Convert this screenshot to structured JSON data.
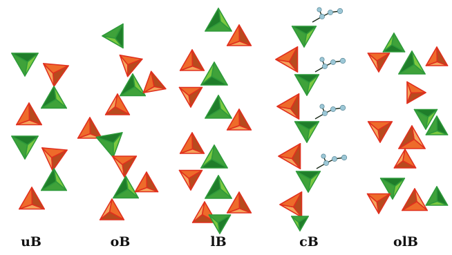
{
  "labels": {
    "uB": "uB",
    "oB": "oB",
    "lB": "lB",
    "cB": "cB",
    "olB": "olB"
  },
  "colors": {
    "green_light": "#7cc940",
    "green_mid": "#3fa23a",
    "green_dark": "#1f7d2a",
    "green_edge": "#2e9a3a",
    "orange_light": "#f6a35c",
    "orange_mid": "#ee6b2a",
    "orange_dark": "#b84a1e",
    "orange_edge": "#e0301e",
    "atom": "#9cc7d6"
  },
  "panels": [
    {
      "id": "uB",
      "name": "uB",
      "tetrahedra": [
        "green",
        "orange",
        "green",
        "orange",
        "green",
        "orange",
        "green",
        "orange"
      ]
    },
    {
      "id": "oB",
      "name": "oB",
      "tetrahedra": [
        "green",
        "orange",
        "green",
        "orange",
        "orange",
        "orange",
        "green",
        "orange",
        "green",
        "orange",
        "orange"
      ]
    },
    {
      "id": "lB",
      "name": "lB",
      "tetrahedra": [
        "green",
        "orange",
        "orange",
        "green",
        "orange",
        "green",
        "orange",
        "orange",
        "green",
        "orange",
        "green",
        "orange",
        "orange",
        "green"
      ]
    },
    {
      "id": "cB",
      "name": "cB",
      "tetrahedra": [
        "green",
        "orange",
        "green",
        "orange",
        "green",
        "orange",
        "green",
        "orange",
        "green"
      ],
      "ligands": 4
    },
    {
      "id": "olB",
      "name": "olB",
      "tetrahedra": [
        "green",
        "orange",
        "green",
        "orange",
        "orange",
        "green",
        "orange",
        "orange",
        "green",
        "orange",
        "green",
        "orange",
        "orange",
        "green"
      ]
    }
  ]
}
